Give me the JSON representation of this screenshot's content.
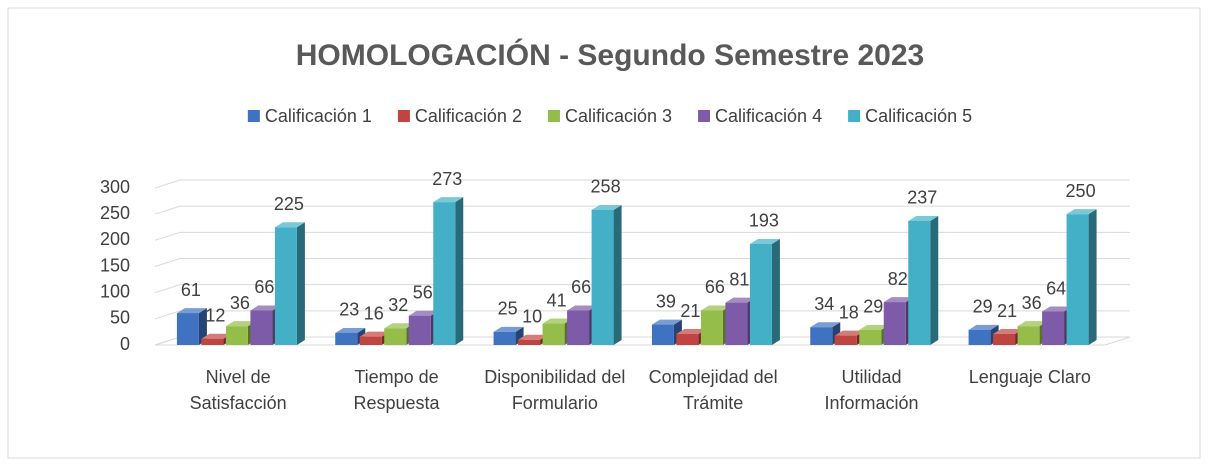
{
  "chart_data": {
    "type": "bar3d",
    "title": "HOMOLOGACIÓN - Segundo Semestre 2023",
    "categories": [
      "Nivel de Satisfacción",
      "Tiempo de Respuesta",
      "Disponibilidad del Formulario",
      "Complejidad del Trámite",
      "Utilidad Información",
      "Lenguaje Claro"
    ],
    "series": [
      {
        "name": "Calificación 1",
        "color": "#3f72c0",
        "values": [
          61,
          23,
          25,
          39,
          34,
          29
        ]
      },
      {
        "name": "Calificación 2",
        "color": "#c0443f",
        "values": [
          12,
          16,
          10,
          21,
          18,
          21
        ]
      },
      {
        "name": "Calificación 3",
        "color": "#94bd4a",
        "values": [
          36,
          32,
          41,
          66,
          29,
          36
        ]
      },
      {
        "name": "Calificación 4",
        "color": "#7e5ba8",
        "values": [
          66,
          56,
          66,
          81,
          82,
          64
        ]
      },
      {
        "name": "Calificación 5",
        "color": "#43b0c8",
        "values": [
          225,
          273,
          258,
          193,
          237,
          250
        ]
      }
    ],
    "ylim": [
      0,
      300
    ],
    "yticks": [
      0,
      50,
      100,
      150,
      200,
      250,
      300
    ],
    "grid": true,
    "legend": "top"
  }
}
